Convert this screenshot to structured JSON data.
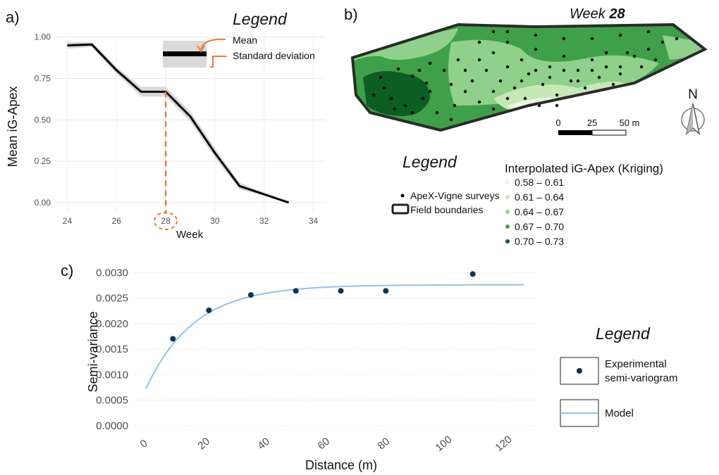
{
  "panel_a": {
    "label": "a)",
    "legend": {
      "title": "Legend",
      "mean": "Mean",
      "sd": "Standard deviation"
    },
    "highlight_week": "28",
    "colors": {
      "line": "#000000",
      "band": "#d9d9d9",
      "highlight": "#ed7d31"
    }
  },
  "panel_b": {
    "label": "b)",
    "title_prefix": "Week ",
    "title_week": "28",
    "scale": {
      "t0": "0",
      "t1": "25",
      "t2": "50 m"
    },
    "north": "N",
    "legend": {
      "title": "Legend",
      "surveys": "ApeX-Vigne surveys",
      "boundaries": "Field boundaries",
      "interp_title": "Interpolated iG-Apex (Kriging)",
      "classes": [
        {
          "label": "0.58 – 0.61",
          "color": "#e8f5e0"
        },
        {
          "label": "0.61 – 0.64",
          "color": "#c5e8b7"
        },
        {
          "label": "0.64 – 0.67",
          "color": "#8fd18a"
        },
        {
          "label": "0.67 – 0.70",
          "color": "#3fa04a"
        },
        {
          "label": "0.70 – 0.73",
          "color": "#0c5e24"
        }
      ]
    }
  },
  "panel_c": {
    "label": "c)",
    "legend": {
      "title": "Legend",
      "exp_line1": "Experimental",
      "exp_line2": "semi-variogram",
      "model": "Model"
    },
    "colors": {
      "points": "#0b3554",
      "model": "#8fc3e8"
    }
  },
  "chart_data": [
    {
      "type": "line",
      "xlabel": "Week",
      "ylabel": "Mean iG-Apex",
      "xlim": [
        23.5,
        34.5
      ],
      "ylim": [
        -0.06,
        1.02
      ],
      "xticks": [
        "24",
        "26",
        "28",
        "30",
        "32",
        "34"
      ],
      "yticks": [
        "0.00",
        "0.25",
        "0.50",
        "0.75",
        "1.00"
      ],
      "x": [
        24,
        25,
        26,
        27,
        28,
        29,
        30,
        31,
        32,
        33
      ],
      "series": [
        {
          "values": [
            0.95,
            0.955,
            0.8,
            0.67,
            0.67,
            0.52,
            0.3,
            0.1,
            0.05,
            0.0
          ]
        }
      ],
      "sd_low": [
        0.93,
        0.94,
        0.78,
        0.64,
        0.64,
        0.49,
        0.27,
        0.08,
        0.04,
        0.0
      ],
      "sd_high": [
        0.97,
        0.97,
        0.82,
        0.7,
        0.7,
        0.55,
        0.33,
        0.12,
        0.06,
        0.0
      ]
    },
    {
      "type": "scatter",
      "xlabel": "Distance (m)",
      "ylabel": "Semi-variance",
      "xlim": [
        -4,
        130
      ],
      "ylim": [
        -0.0001,
        0.0031
      ],
      "xticks": [
        "0",
        "20",
        "40",
        "60",
        "80",
        "100",
        "120"
      ],
      "yticks": [
        "0.0000",
        "0.0005",
        "0.0010",
        "0.0015",
        "0.0020",
        "0.0025",
        "0.0030"
      ],
      "series": [
        {
          "name": "Experimental semi-variogram",
          "x": [
            9,
            21,
            35,
            50,
            65,
            80,
            109
          ],
          "y": [
            0.0017,
            0.00226,
            0.00256,
            0.00264,
            0.00264,
            0.00264,
            0.00297
          ]
        },
        {
          "name": "Model",
          "model": {
            "nugget": 0.00072,
            "sill": 0.00276,
            "range": 48,
            "x_max": 126
          }
        }
      ]
    }
  ]
}
